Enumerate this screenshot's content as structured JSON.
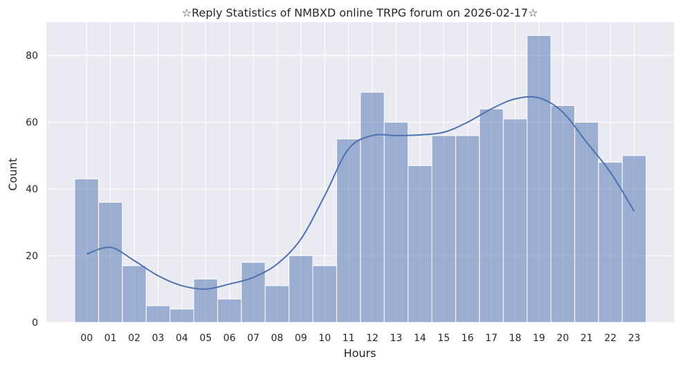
{
  "chart_data": {
    "type": "bar",
    "title": "☆Reply Statistics of NMBXD online TRPG forum on 2026-02-17☆",
    "xlabel": "Hours",
    "ylabel": "Count",
    "categories": [
      "00",
      "01",
      "02",
      "03",
      "04",
      "05",
      "06",
      "07",
      "08",
      "09",
      "10",
      "11",
      "12",
      "13",
      "14",
      "15",
      "16",
      "17",
      "18",
      "19",
      "20",
      "21",
      "22",
      "23"
    ],
    "values": [
      43,
      36,
      17,
      5,
      4,
      13,
      7,
      18,
      11,
      20,
      17,
      55,
      69,
      60,
      47,
      56,
      56,
      64,
      61,
      86,
      65,
      60,
      48,
      50
    ],
    "kde": [
      20.5,
      22.5,
      18.5,
      14,
      11,
      10,
      11.5,
      13.5,
      17.5,
      25,
      38,
      52,
      56,
      56,
      56.2,
      57,
      60,
      64,
      67,
      67.3,
      63,
      54,
      45,
      33.3
    ],
    "ylim": [
      0,
      90
    ],
    "yticks": [
      0,
      20,
      40,
      60,
      80
    ],
    "grid": true,
    "colors": {
      "background": "#eaeaf2",
      "grid": "#ffffff",
      "bar_fill": "#4c72b0",
      "bar_opacity": 0.5,
      "line": "#4c72b0"
    }
  }
}
